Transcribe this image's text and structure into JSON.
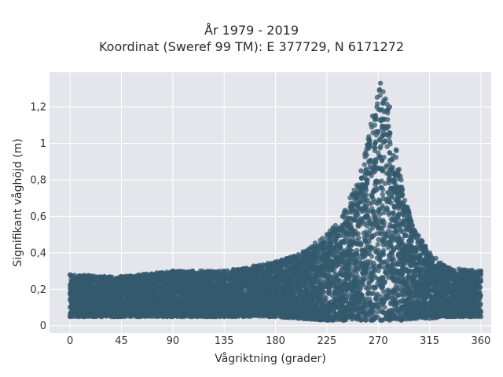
{
  "chart_data": {
    "type": "scatter",
    "title": "År 1979 - 2019",
    "subtitle": "Koordinat (Sweref 99 TM): E 377729, N 6171272",
    "xlabel": "Vågriktning (grader)",
    "ylabel": "Signifikant våghöjd (m)",
    "xlim": [
      -18,
      369
    ],
    "ylim": [
      -0.04,
      1.39
    ],
    "xticks": [
      0,
      45,
      90,
      135,
      180,
      225,
      270,
      315,
      360
    ],
    "xtick_labels": [
      "0",
      "45",
      "90",
      "135",
      "180",
      "225",
      "270",
      "315",
      "360"
    ],
    "yticks": [
      0,
      0.2,
      0.4,
      0.6,
      0.8,
      1,
      1.2
    ],
    "ytick_labels": [
      "0",
      "0,2",
      "0,4",
      "0,6",
      "0,8",
      "1",
      "1,2"
    ],
    "grid": true,
    "marker_color": "#34596e",
    "background_color": "#e5e6eb",
    "envelope": [
      {
        "x": 0,
        "low": 0.05,
        "high": 0.28
      },
      {
        "x": 45,
        "low": 0.05,
        "high": 0.27
      },
      {
        "x": 90,
        "low": 0.05,
        "high": 0.3
      },
      {
        "x": 135,
        "low": 0.05,
        "high": 0.3
      },
      {
        "x": 180,
        "low": 0.05,
        "high": 0.35
      },
      {
        "x": 200,
        "low": 0.04,
        "high": 0.39
      },
      {
        "x": 225,
        "low": 0.03,
        "high": 0.5
      },
      {
        "x": 240,
        "low": 0.03,
        "high": 0.62
      },
      {
        "x": 255,
        "low": 0.03,
        "high": 0.85
      },
      {
        "x": 265,
        "low": 0.03,
        "high": 1.15
      },
      {
        "x": 272,
        "low": 0.03,
        "high": 1.33
      },
      {
        "x": 280,
        "low": 0.03,
        "high": 1.2
      },
      {
        "x": 290,
        "low": 0.03,
        "high": 0.8
      },
      {
        "x": 300,
        "low": 0.04,
        "high": 0.55
      },
      {
        "x": 315,
        "low": 0.04,
        "high": 0.4
      },
      {
        "x": 330,
        "low": 0.05,
        "high": 0.32
      },
      {
        "x": 360,
        "low": 0.05,
        "high": 0.3
      }
    ]
  }
}
